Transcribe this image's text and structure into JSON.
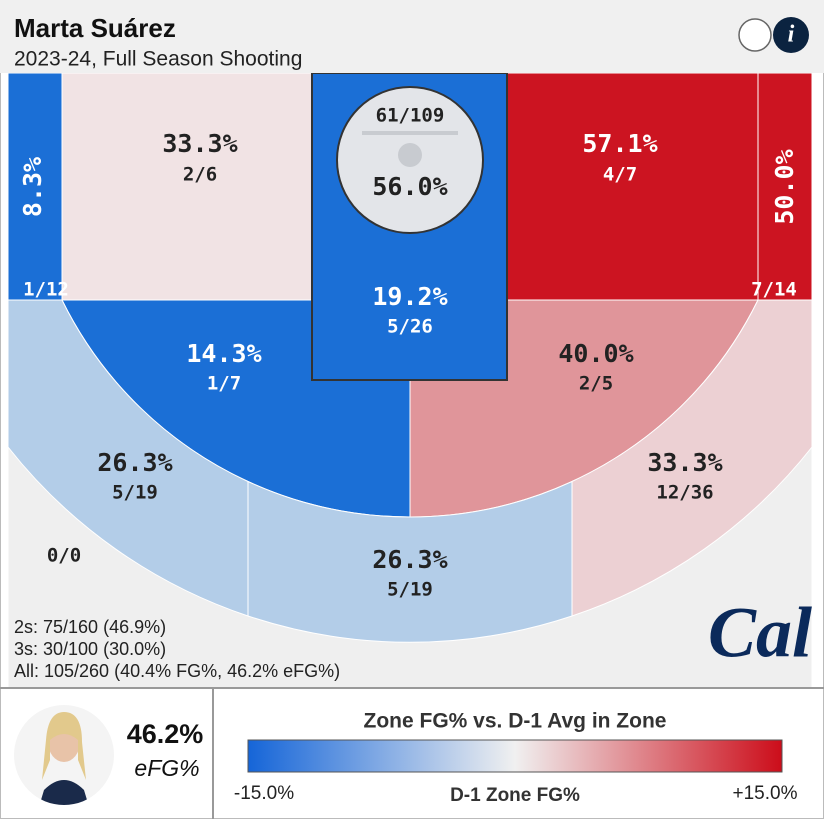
{
  "header": {
    "title": "Marta Suárez",
    "subtitle": "2023-24, Full Season Shooting"
  },
  "restricted": {
    "shots": "61/109",
    "pct": "56.0%",
    "color": "#e3e5e9"
  },
  "zones": [
    {
      "pct": "8.3%",
      "shots": "1/12",
      "color": "#1b6fd6"
    },
    {
      "pct": "33.3%",
      "shots": "2/6",
      "color": "#f1e3e4"
    },
    {
      "pct": "57.1%",
      "shots": "4/7",
      "color": "#cc1421"
    },
    {
      "pct": "50.0%",
      "shots": "7/14",
      "color": "#cc1421"
    },
    {
      "pct": "19.2%",
      "shots": "5/26",
      "color": "#1b6fd6"
    },
    {
      "pct": "14.3%",
      "shots": "1/7",
      "color": "#1b6fd6"
    },
    {
      "pct": "40.0%",
      "shots": "2/5",
      "color": "#e0959a"
    },
    {
      "pct": "26.3%",
      "shots": "5/19",
      "color": "#b3cde8"
    },
    {
      "pct": "26.3%",
      "shots": "5/19",
      "color": "#b3cde8"
    },
    {
      "pct": "33.3%",
      "shots": "12/36",
      "color": "#ecd0d3"
    },
    {
      "shots": "0/0",
      "color": "#efefef"
    }
  ],
  "summary": [
    "2s: 75/160 (46.9%)",
    "3s: 30/100 (30.0%)",
    "All: 105/260 (40.4% FG%, 46.2% eFG%)"
  ],
  "logo": "Cal",
  "footer": {
    "efg_value": "46.2%",
    "efg_label": "eFG%",
    "legend_title": "Zone FG% vs. D-1 Avg in Zone",
    "legend_min": "-15.0%",
    "legend_axis": "D-1 Zone FG%",
    "legend_max": "+15.0%",
    "scale_colors": [
      "#1565d8",
      "#f0f0f0",
      "#cc0d1a"
    ]
  }
}
